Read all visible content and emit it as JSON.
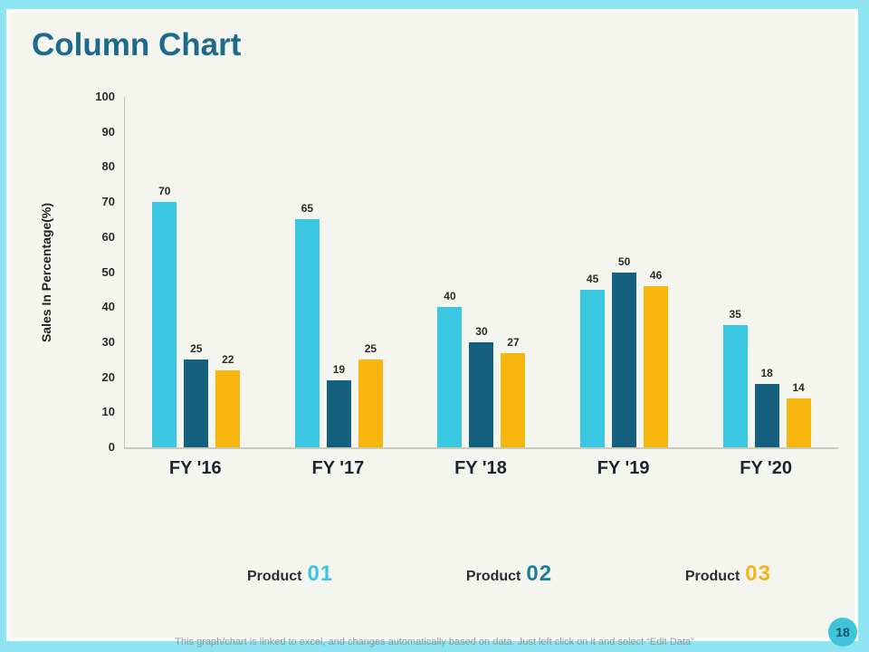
{
  "slide": {
    "title": "Column Chart",
    "page_number": "18",
    "footer": "This graph/chart is linked to excel, and changes automatically based on data. Just left click on it and select “Edit Data”"
  },
  "chart_data": {
    "type": "bar",
    "title": "Column Chart",
    "xlabel": "",
    "ylabel": "Sales In Percentage(%)",
    "ylim": [
      0,
      100
    ],
    "yticks": [
      0,
      10,
      20,
      30,
      40,
      50,
      60,
      70,
      80,
      90,
      100
    ],
    "grid": false,
    "legend_position": "bottom",
    "categories": [
      "FY '16",
      "FY '17",
      "FY '18",
      "FY '19",
      "FY '20"
    ],
    "series": [
      {
        "name": "Product 01",
        "color": "#3ac7e2",
        "values": [
          70,
          65,
          40,
          45,
          35
        ]
      },
      {
        "name": "Product 02",
        "color": "#16607f",
        "values": [
          25,
          19,
          30,
          50,
          18
        ]
      },
      {
        "name": "Product 03",
        "color": "#f7b60d",
        "values": [
          22,
          25,
          27,
          46,
          14
        ]
      }
    ]
  },
  "legend_items": [
    {
      "label": "Product",
      "number": "01",
      "color": "#3ac7e2"
    },
    {
      "label": "Product",
      "number": "02",
      "color": "#1c7c9c"
    },
    {
      "label": "Product",
      "number": "03",
      "color": "#f0b51c"
    }
  ],
  "colors": {
    "frame": "#8ee4f1",
    "paper": "#f5f5ef",
    "title": "#1e6a8c",
    "axis_line": "#c9c9bc",
    "page_badge": "#3fc3d8"
  }
}
